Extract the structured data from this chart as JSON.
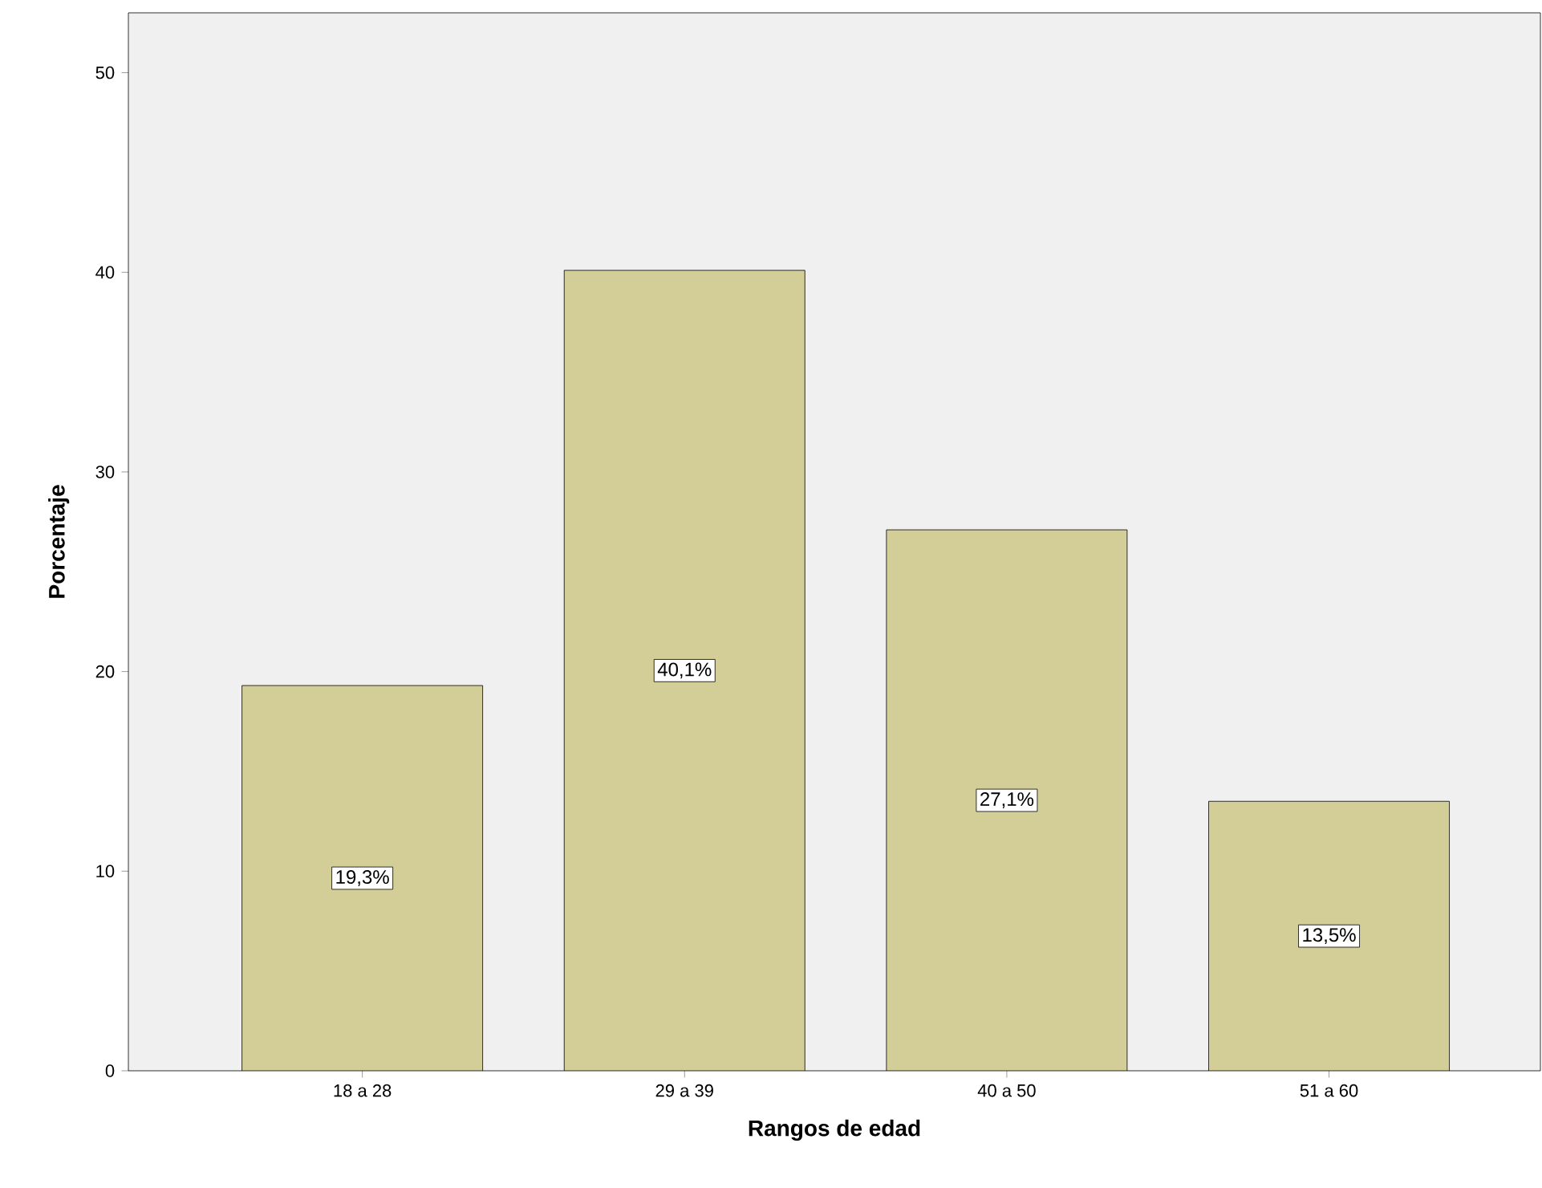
{
  "chart_data": {
    "type": "bar",
    "xlabel": "Rangos de edad",
    "ylabel": "Porcentaje",
    "categories": [
      "18 a 28",
      "29 a 39",
      "40 a 50",
      "51 a 60"
    ],
    "values": [
      19.3,
      40.1,
      27.1,
      13.5
    ],
    "value_labels": [
      "19,3%",
      "40,1%",
      "27,1%",
      "13,5%"
    ],
    "color": "#d3ce97",
    "ylim": [
      0,
      53
    ],
    "yticks": [
      0,
      10,
      20,
      30,
      40,
      50
    ]
  }
}
